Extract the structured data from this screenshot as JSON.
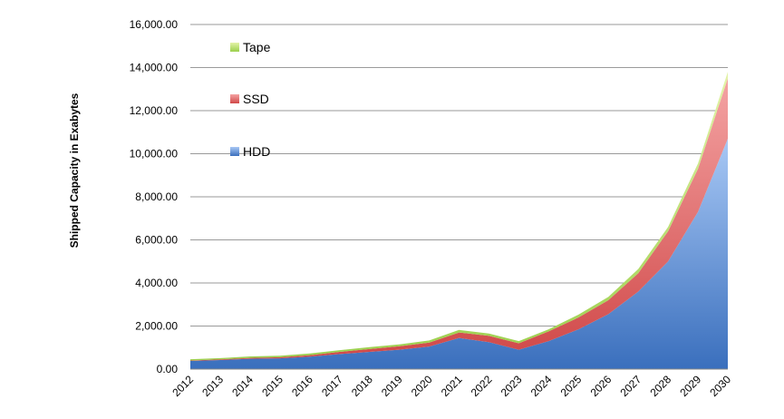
{
  "chart_data": {
    "type": "area",
    "stacked": true,
    "title": "",
    "xlabel": "",
    "ylabel": "Shipped Capacity in Exabytes",
    "x": [
      "2012",
      "2013",
      "2014",
      "2015",
      "2016",
      "2017",
      "2018",
      "2019",
      "2020",
      "2021",
      "2022",
      "2023",
      "2024",
      "2025",
      "2026",
      "2027",
      "2028",
      "2029",
      "2030"
    ],
    "ylim": [
      0,
      16000
    ],
    "yticks": [
      "0.00",
      "2,000.00",
      "4,000.00",
      "6,000.00",
      "8,000.00",
      "10,000.00",
      "12,000.00",
      "14,000.00",
      "16,000.00"
    ],
    "grid": true,
    "legend_position": "top-left",
    "series": [
      {
        "name": "HDD",
        "color": "#4f81bd",
        "values": [
          380,
          420,
          480,
          500,
          580,
          700,
          800,
          900,
          1050,
          1450,
          1250,
          900,
          1300,
          1850,
          2550,
          3600,
          5000,
          7300,
          10700
        ]
      },
      {
        "name": "SSD",
        "color": "#e06666",
        "values": [
          20,
          30,
          40,
          50,
          70,
          100,
          130,
          160,
          180,
          250,
          300,
          300,
          450,
          550,
          650,
          850,
          1400,
          2000,
          2800
        ]
      },
      {
        "name": "Tape",
        "color": "#9bbb59",
        "values": [
          60,
          60,
          70,
          70,
          80,
          80,
          90,
          90,
          100,
          120,
          100,
          100,
          100,
          130,
          150,
          200,
          200,
          250,
          300
        ]
      }
    ],
    "legend": [
      {
        "name": "Tape",
        "color": "#9bbb59"
      },
      {
        "name": "SSD",
        "color": "#e06666"
      },
      {
        "name": "HDD",
        "color": "#4f81bd"
      }
    ]
  }
}
